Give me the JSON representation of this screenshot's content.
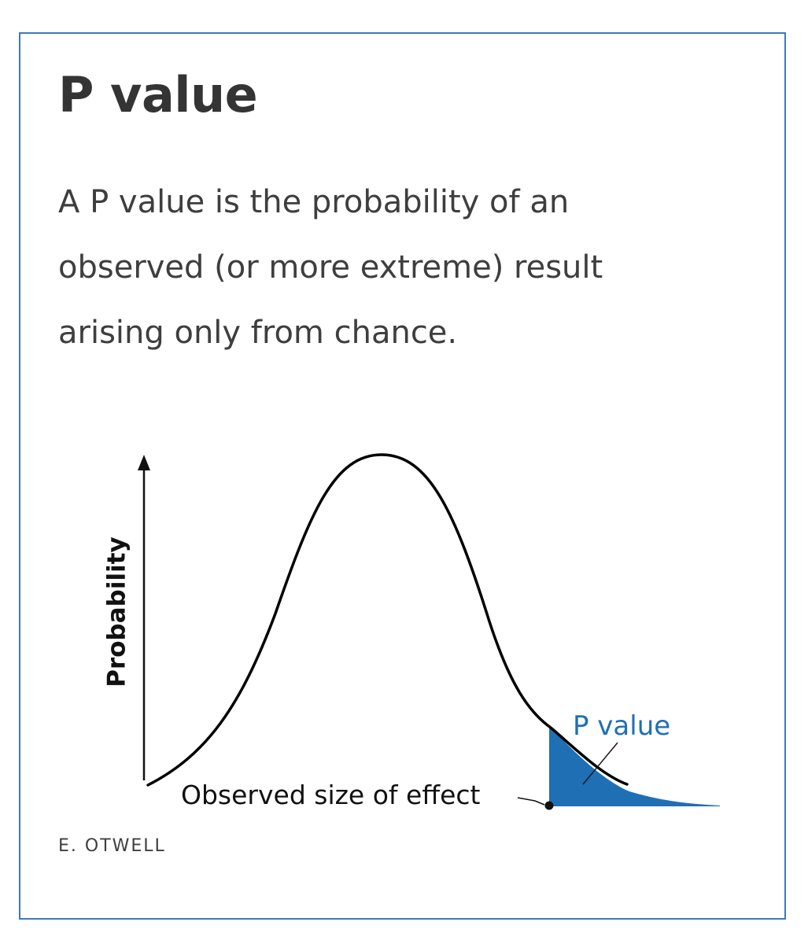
{
  "card": {
    "title": "P value",
    "description_lines": [
      "A P value is the probability of an",
      "observed (or more extreme) result",
      "arising only from chance."
    ],
    "credit": "E. OTWELL"
  },
  "diagram": {
    "y_axis_label": "Probability",
    "observed_label": "Observed size of effect",
    "p_value_label": "P value",
    "colors": {
      "curve": "#000000",
      "tail_fill": "#1f6fb5",
      "p_value_text": "#1f6fb5",
      "border": "#3b7ab8"
    }
  }
}
